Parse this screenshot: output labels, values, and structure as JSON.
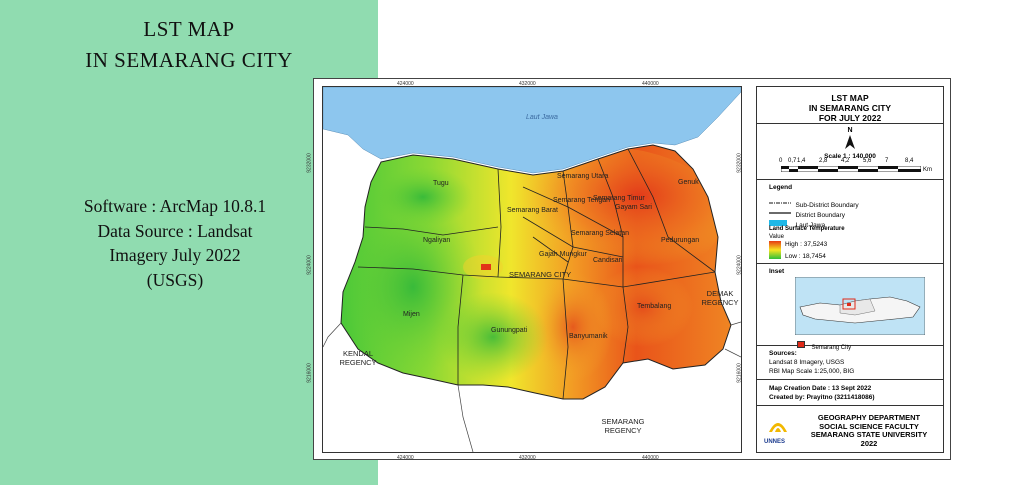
{
  "slide": {
    "title_line1": "LST MAP",
    "title_line2": "IN SEMARANG CITY",
    "info_line1": "Software : ArcMap 10.8.1",
    "info_line2": "Data Source : Landsat",
    "info_line3": "Imagery July 2022",
    "info_line4": "(USGS)",
    "panel_color": "#90dcb0"
  },
  "map": {
    "sea_label": "Laut Jawa",
    "sea_color": "#8dc6ee",
    "city_label": "SEMARANG CITY",
    "districts": [
      "Tugu",
      "Semarang Utara",
      "Semarang Tengah",
      "Semarang Barat",
      "Semarang Timur",
      "Gayam Sari",
      "Genuk",
      "Ngaliyan",
      "Gajah Mungkur",
      "Semarang Selatan",
      "Candisari",
      "Pedurungan",
      "Mijen",
      "Gunungpati",
      "Banyumanik",
      "Tembalang"
    ],
    "regions": {
      "kendal": "KENDAL\nREGENCY",
      "demak": "DEMAK\nREGENCY",
      "semarang_regency": "SEMARANG\nREGENCY"
    },
    "x_ticks": [
      "424000",
      "432000",
      "440000"
    ],
    "y_ticks": [
      "9232000",
      "9224000",
      "9216000"
    ]
  },
  "legend_panel": {
    "title_line1": "LST MAP",
    "title_line2": "IN SEMARANG CITY",
    "title_line3": "FOR JULY 2022",
    "north": "N",
    "scale_label": "Scale 1 : 140,000",
    "scale_ticks": [
      "0",
      "0,7",
      "1,4",
      "2,8",
      "4,2",
      "5,6",
      "7",
      "8,4"
    ],
    "scale_unit": "Km",
    "legend_heading": "Legend",
    "sub_district": "Sub-District Boundary",
    "district": "District Boundary",
    "sea": "Laut Jawa",
    "lst_heading": "Land Surface Temperature",
    "value_label": "Value",
    "high": "High : 37,5243",
    "low": "Low : 18,7454",
    "inset_heading": "Inset",
    "inset_item": "Semarang City",
    "sources_heading": "Sources:",
    "source1": "Landsat 8 Imagery, USGS",
    "source2": "RBI Map Scale 1:25,000, BIG",
    "creation": "Map Creation Date : 13 Sept 2022",
    "created_by": "Created by: Prayitno  (3211418086)",
    "logo_text": "UNNES",
    "org1": "GEOGRAPHY DEPARTMENT",
    "org2": "SOCIAL SCIENCE FACULTY",
    "org3": "SEMARANG STATE UNIVERSITY",
    "org4": "2022",
    "colors": {
      "high": "#e63b12",
      "mid": "#f7e521",
      "low": "#2fbf3a"
    }
  }
}
